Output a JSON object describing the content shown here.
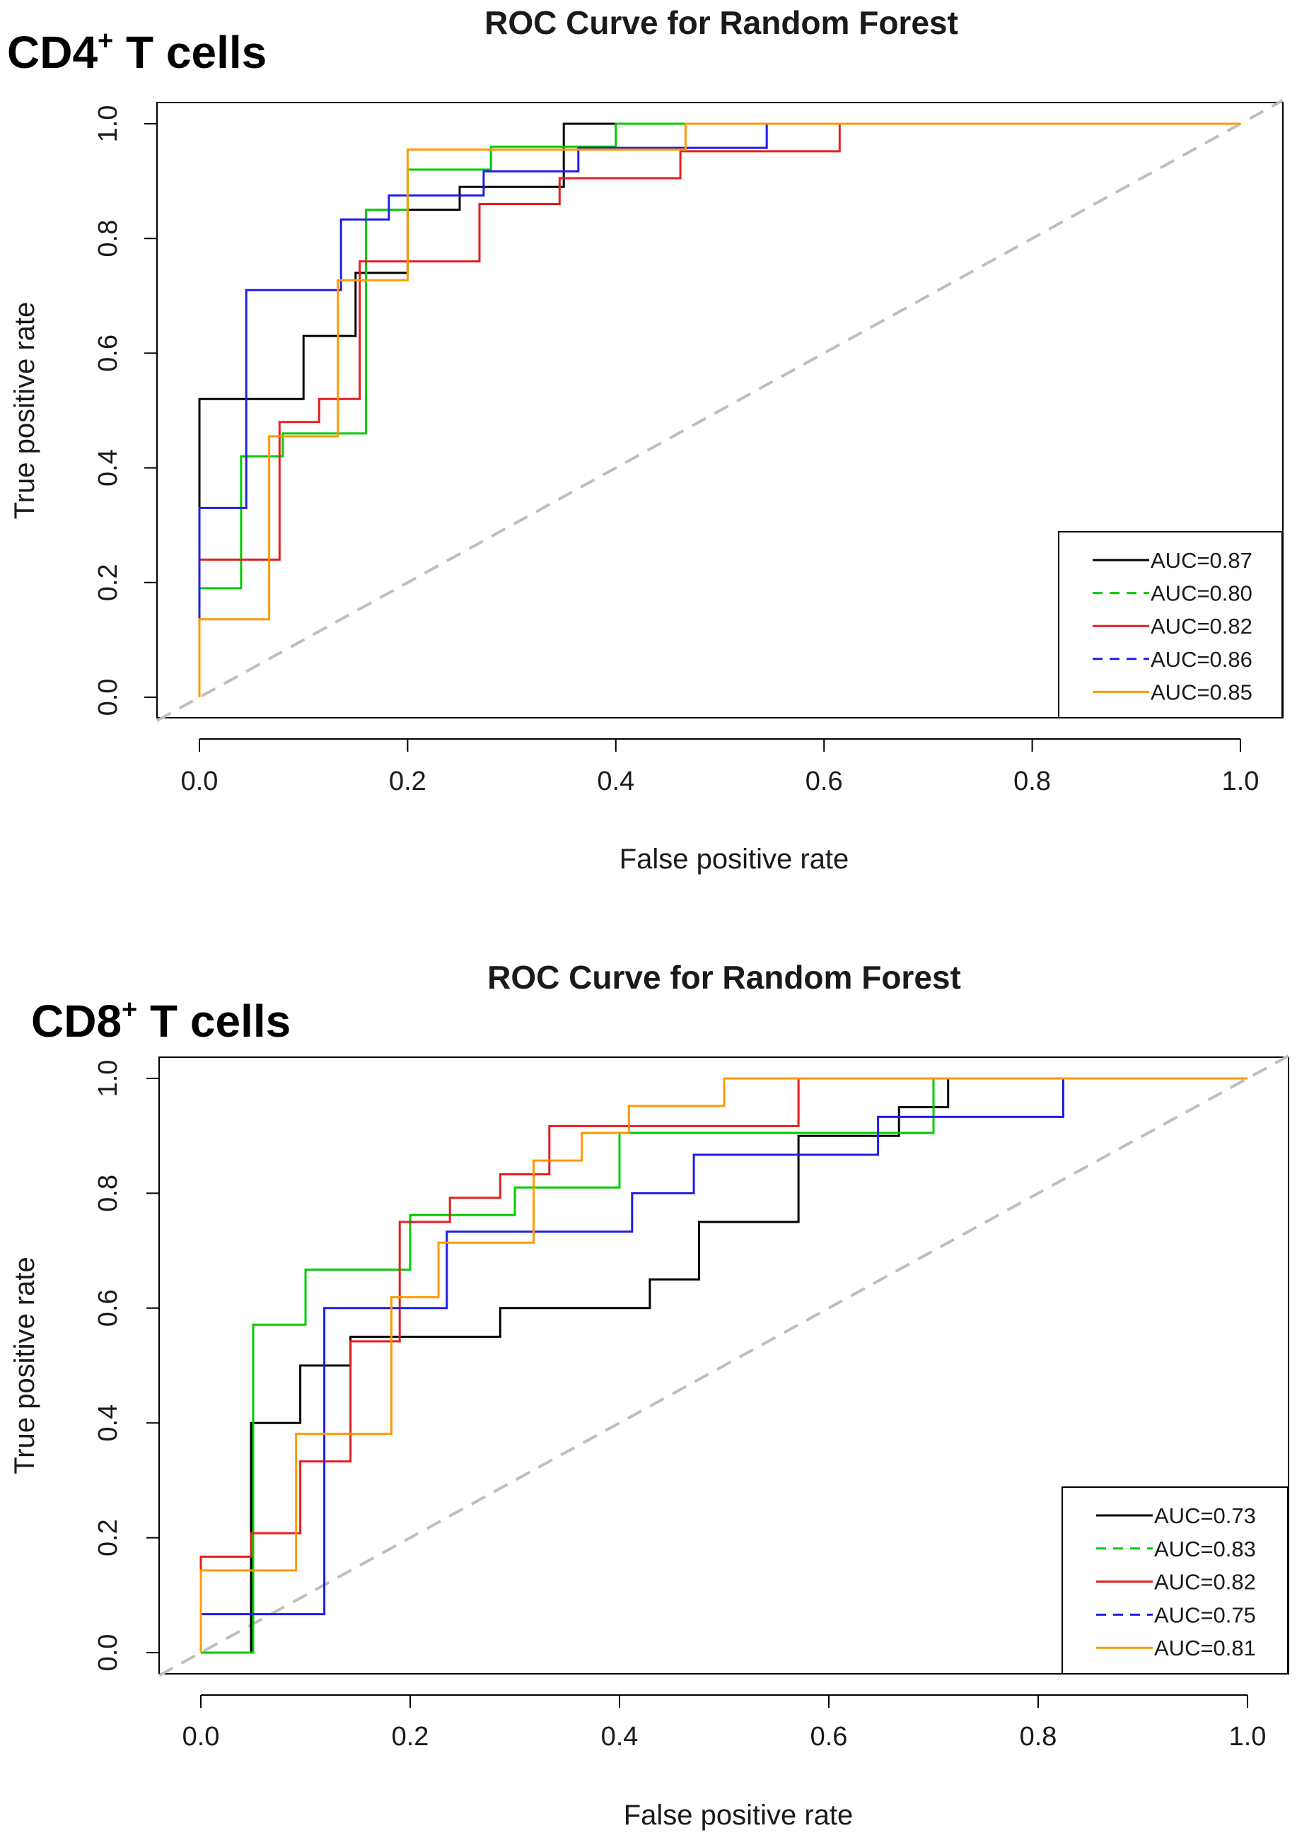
{
  "chart_data": [
    {
      "type": "line",
      "panel_label": "CD4",
      "panel_label_sup": "+",
      "panel_label_suffix": " T cells",
      "title": "ROC Curve for Random Forest",
      "xlabel": "False positive rate",
      "ylabel": "True positive rate",
      "xlim": [
        0,
        1
      ],
      "ylim": [
        0,
        1
      ],
      "xticks": [
        "0.0",
        "0.2",
        "0.4",
        "0.6",
        "0.8",
        "1.0"
      ],
      "yticks": [
        "0.0",
        "0.2",
        "0.4",
        "0.6",
        "0.8",
        "1.0"
      ],
      "legend_position": "bottom-right",
      "diagonal": {
        "color": "#bebebe",
        "style": "dashed"
      },
      "series": [
        {
          "name": "AUC=0.87",
          "color": "#000000",
          "legend_dash": "solid",
          "points": [
            [
              0,
              0
            ],
            [
              0,
              0.52
            ],
            [
              0.1,
              0.52
            ],
            [
              0.1,
              0.63
            ],
            [
              0.15,
              0.63
            ],
            [
              0.15,
              0.74
            ],
            [
              0.2,
              0.74
            ],
            [
              0.2,
              0.85
            ],
            [
              0.25,
              0.85
            ],
            [
              0.25,
              0.89
            ],
            [
              0.35,
              0.89
            ],
            [
              0.35,
              1
            ],
            [
              0.4,
              1
            ],
            [
              1,
              1
            ]
          ]
        },
        {
          "name": "AUC=0.80",
          "color": "#00cc00",
          "legend_dash": "dashed",
          "points": [
            [
              0,
              0
            ],
            [
              0,
              0.19
            ],
            [
              0.04,
              0.19
            ],
            [
              0.04,
              0.42
            ],
            [
              0.08,
              0.42
            ],
            [
              0.08,
              0.46
            ],
            [
              0.16,
              0.46
            ],
            [
              0.16,
              0.85
            ],
            [
              0.2,
              0.85
            ],
            [
              0.2,
              0.92
            ],
            [
              0.28,
              0.92
            ],
            [
              0.28,
              0.96
            ],
            [
              0.4,
              0.96
            ],
            [
              0.4,
              1
            ],
            [
              1,
              1
            ]
          ]
        },
        {
          "name": "AUC=0.82",
          "color": "#e51e1e",
          "legend_dash": "solid",
          "points": [
            [
              0,
              0
            ],
            [
              0,
              0.24
            ],
            [
              0.077,
              0.24
            ],
            [
              0.077,
              0.48
            ],
            [
              0.115,
              0.48
            ],
            [
              0.115,
              0.52
            ],
            [
              0.154,
              0.52
            ],
            [
              0.154,
              0.76
            ],
            [
              0.269,
              0.76
            ],
            [
              0.269,
              0.86
            ],
            [
              0.346,
              0.86
            ],
            [
              0.346,
              0.905
            ],
            [
              0.462,
              0.905
            ],
            [
              0.462,
              0.952
            ],
            [
              0.615,
              0.952
            ],
            [
              0.615,
              1
            ],
            [
              1,
              1
            ]
          ]
        },
        {
          "name": "AUC=0.86",
          "color": "#1f1fe6",
          "legend_dash": "dashed",
          "points": [
            [
              0,
              0
            ],
            [
              0,
              0.33
            ],
            [
              0.045,
              0.33
            ],
            [
              0.045,
              0.71
            ],
            [
              0.136,
              0.71
            ],
            [
              0.136,
              0.833
            ],
            [
              0.182,
              0.833
            ],
            [
              0.182,
              0.875
            ],
            [
              0.273,
              0.875
            ],
            [
              0.273,
              0.917
            ],
            [
              0.364,
              0.917
            ],
            [
              0.364,
              0.958
            ],
            [
              0.545,
              0.958
            ],
            [
              0.545,
              1
            ],
            [
              1,
              1
            ]
          ]
        },
        {
          "name": "AUC=0.85",
          "color": "#ff9900",
          "legend_dash": "solid",
          "points": [
            [
              0,
              0
            ],
            [
              0,
              0.136
            ],
            [
              0.067,
              0.136
            ],
            [
              0.067,
              0.455
            ],
            [
              0.133,
              0.455
            ],
            [
              0.133,
              0.727
            ],
            [
              0.2,
              0.727
            ],
            [
              0.2,
              0.955
            ],
            [
              0.467,
              0.955
            ],
            [
              0.467,
              1
            ],
            [
              1,
              1
            ]
          ]
        }
      ]
    },
    {
      "type": "line",
      "panel_label": "CD8",
      "panel_label_sup": "+",
      "panel_label_suffix": " T cells",
      "title": "ROC Curve for Random Forest",
      "xlabel": "False positive rate",
      "ylabel": "True positive rate",
      "xlim": [
        0,
        1
      ],
      "ylim": [
        0,
        1
      ],
      "xticks": [
        "0.0",
        "0.2",
        "0.4",
        "0.6",
        "0.8",
        "1.0"
      ],
      "yticks": [
        "0.0",
        "0.2",
        "0.4",
        "0.6",
        "0.8",
        "1.0"
      ],
      "legend_position": "bottom-right",
      "diagonal": {
        "color": "#bebebe",
        "style": "dashed"
      },
      "series": [
        {
          "name": "AUC=0.73",
          "color": "#000000",
          "legend_dash": "solid",
          "points": [
            [
              0,
              0
            ],
            [
              0.048,
              0
            ],
            [
              0.048,
              0.4
            ],
            [
              0.095,
              0.4
            ],
            [
              0.095,
              0.5
            ],
            [
              0.143,
              0.5
            ],
            [
              0.143,
              0.55
            ],
            [
              0.286,
              0.55
            ],
            [
              0.286,
              0.6
            ],
            [
              0.429,
              0.6
            ],
            [
              0.429,
              0.65
            ],
            [
              0.476,
              0.65
            ],
            [
              0.476,
              0.75
            ],
            [
              0.571,
              0.75
            ],
            [
              0.571,
              0.9
            ],
            [
              0.667,
              0.9
            ],
            [
              0.667,
              0.95
            ],
            [
              0.714,
              0.95
            ],
            [
              0.714,
              1
            ],
            [
              1,
              1
            ]
          ]
        },
        {
          "name": "AUC=0.83",
          "color": "#00cc00",
          "legend_dash": "dashed",
          "points": [
            [
              0,
              0
            ],
            [
              0.05,
              0
            ],
            [
              0.05,
              0.571
            ],
            [
              0.1,
              0.571
            ],
            [
              0.1,
              0.667
            ],
            [
              0.2,
              0.667
            ],
            [
              0.2,
              0.762
            ],
            [
              0.3,
              0.762
            ],
            [
              0.3,
              0.81
            ],
            [
              0.4,
              0.81
            ],
            [
              0.4,
              0.905
            ],
            [
              0.7,
              0.905
            ],
            [
              0.7,
              1
            ],
            [
              1,
              1
            ]
          ]
        },
        {
          "name": "AUC=0.82",
          "color": "#e51e1e",
          "legend_dash": "solid",
          "points": [
            [
              0,
              0
            ],
            [
              0,
              0.167
            ],
            [
              0.048,
              0.167
            ],
            [
              0.048,
              0.208
            ],
            [
              0.095,
              0.208
            ],
            [
              0.095,
              0.333
            ],
            [
              0.143,
              0.333
            ],
            [
              0.143,
              0.542
            ],
            [
              0.19,
              0.542
            ],
            [
              0.19,
              0.75
            ],
            [
              0.238,
              0.75
            ],
            [
              0.238,
              0.792
            ],
            [
              0.286,
              0.792
            ],
            [
              0.286,
              0.833
            ],
            [
              0.333,
              0.833
            ],
            [
              0.333,
              0.917
            ],
            [
              0.571,
              0.917
            ],
            [
              0.571,
              1
            ],
            [
              1,
              1
            ]
          ]
        },
        {
          "name": "AUC=0.75",
          "color": "#1f1fe6",
          "legend_dash": "dashed",
          "points": [
            [
              0,
              0
            ],
            [
              0,
              0.067
            ],
            [
              0.118,
              0.067
            ],
            [
              0.118,
              0.6
            ],
            [
              0.235,
              0.6
            ],
            [
              0.235,
              0.733
            ],
            [
              0.412,
              0.733
            ],
            [
              0.412,
              0.8
            ],
            [
              0.471,
              0.8
            ],
            [
              0.471,
              0.867
            ],
            [
              0.647,
              0.867
            ],
            [
              0.647,
              0.933
            ],
            [
              0.824,
              0.933
            ],
            [
              0.824,
              1
            ],
            [
              1,
              1
            ]
          ]
        },
        {
          "name": "AUC=0.81",
          "color": "#ff9900",
          "legend_dash": "solid",
          "points": [
            [
              0,
              0
            ],
            [
              0,
              0.143
            ],
            [
              0.091,
              0.143
            ],
            [
              0.091,
              0.381
            ],
            [
              0.182,
              0.381
            ],
            [
              0.182,
              0.619
            ],
            [
              0.227,
              0.619
            ],
            [
              0.227,
              0.714
            ],
            [
              0.318,
              0.714
            ],
            [
              0.318,
              0.857
            ],
            [
              0.364,
              0.857
            ],
            [
              0.364,
              0.905
            ],
            [
              0.409,
              0.905
            ],
            [
              0.409,
              0.952
            ],
            [
              0.5,
              0.952
            ],
            [
              0.5,
              1
            ],
            [
              1,
              1
            ]
          ]
        }
      ]
    }
  ]
}
